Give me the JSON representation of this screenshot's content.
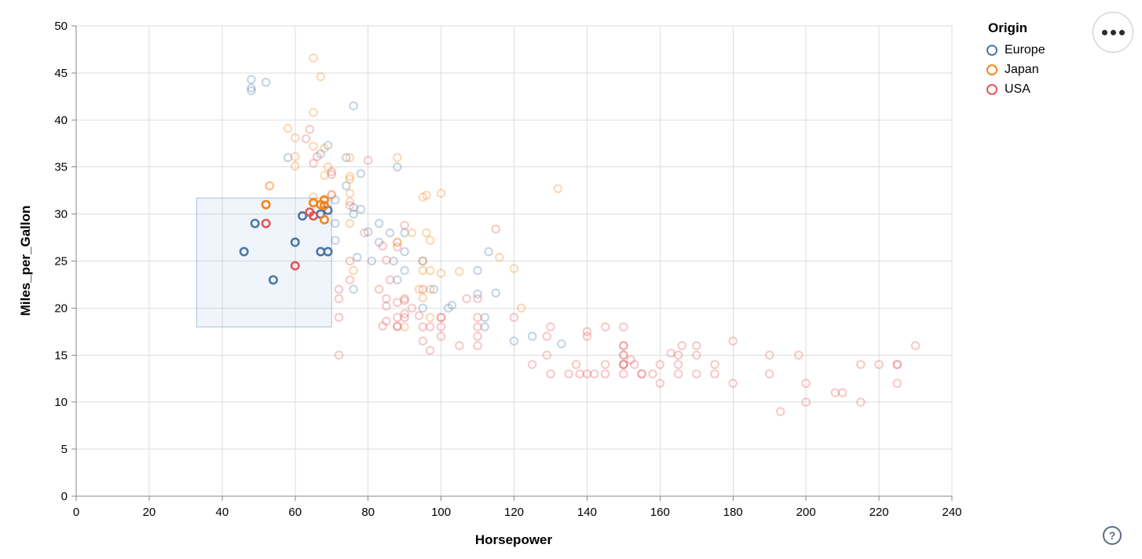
{
  "legend": {
    "title": "Origin",
    "items": [
      {
        "label": "Europe",
        "color": "#4c78a8"
      },
      {
        "label": "Japan",
        "color": "#f58518"
      },
      {
        "label": "USA",
        "color": "#e45756"
      }
    ]
  },
  "toolbar": {
    "more_options_icon": "more-options"
  },
  "help": {
    "label": "?"
  },
  "chart_data": {
    "type": "scatter",
    "title": "",
    "xlabel": "Horsepower",
    "ylabel": "Miles_per_Gallon",
    "xlim": [
      0,
      240
    ],
    "ylim": [
      0,
      50
    ],
    "xticks": [
      0,
      20,
      40,
      60,
      80,
      100,
      120,
      140,
      160,
      180,
      200,
      220,
      240
    ],
    "yticks": [
      0,
      5,
      10,
      15,
      20,
      25,
      30,
      35,
      40,
      45,
      50
    ],
    "grid": true,
    "legend_position": "top-right",
    "brush_selection": {
      "x": [
        33,
        70
      ],
      "y": [
        18,
        31.7
      ]
    },
    "unselected_opacity": 0.3,
    "point_shape": "open-circle",
    "series": [
      {
        "name": "Europe",
        "color": "#4c78a8",
        "points": [
          [
            46,
            26
          ],
          [
            49,
            29
          ],
          [
            54,
            23
          ],
          [
            60,
            27
          ],
          [
            62,
            29.8
          ],
          [
            67,
            26
          ],
          [
            69,
            26
          ],
          [
            69,
            30.4
          ],
          [
            67,
            30
          ],
          [
            87,
            25
          ],
          [
            90,
            24
          ],
          [
            95,
            25
          ],
          [
            113,
            26
          ],
          [
            48,
            43.1
          ],
          [
            48,
            44.3
          ],
          [
            48,
            43.4
          ],
          [
            52,
            44
          ],
          [
            67,
            36.4
          ],
          [
            76,
            41.5
          ],
          [
            83,
            29
          ],
          [
            76,
            30
          ],
          [
            76,
            22
          ],
          [
            90,
            26
          ],
          [
            90,
            28
          ],
          [
            81,
            25
          ],
          [
            83,
            27
          ],
          [
            71,
            29
          ],
          [
            71,
            31.5
          ],
          [
            74,
            33
          ],
          [
            74,
            36
          ],
          [
            76,
            30.7
          ],
          [
            78,
            34.3
          ],
          [
            78,
            30.5
          ],
          [
            80,
            28.1
          ],
          [
            88,
            35
          ],
          [
            58,
            36
          ],
          [
            69,
            37.3
          ],
          [
            77,
            25.4
          ],
          [
            71,
            27.2
          ],
          [
            112,
            19
          ],
          [
            112,
            18
          ],
          [
            98,
            22
          ],
          [
            102,
            20
          ],
          [
            125,
            17
          ],
          [
            133,
            16.2
          ],
          [
            120,
            16.5
          ],
          [
            110,
            21.5
          ],
          [
            115,
            21.6
          ],
          [
            110,
            24
          ],
          [
            103,
            20.3
          ],
          [
            95,
            20
          ],
          [
            88,
            23
          ],
          [
            86,
            28
          ]
        ]
      },
      {
        "name": "Japan",
        "color": "#f58518",
        "points": [
          [
            52,
            31
          ],
          [
            65,
            31.2
          ],
          [
            67,
            31
          ],
          [
            68,
            31.5
          ],
          [
            68,
            30.9
          ],
          [
            68,
            29.4
          ],
          [
            95,
            24
          ],
          [
            88,
            27
          ],
          [
            88,
            27
          ],
          [
            95,
            25
          ],
          [
            69,
            35
          ],
          [
            92,
            28
          ],
          [
            97,
            24
          ],
          [
            97,
            19
          ],
          [
            90,
            18
          ],
          [
            94,
            22
          ],
          [
            76,
            24
          ],
          [
            53,
            33
          ],
          [
            53,
            33
          ],
          [
            70,
            32
          ],
          [
            75,
            29
          ],
          [
            60,
            36.1
          ],
          [
            60,
            35.1
          ],
          [
            67,
            44.6
          ],
          [
            75,
            36
          ],
          [
            75,
            33.7
          ],
          [
            122,
            20
          ],
          [
            97,
            22
          ],
          [
            95,
            21.1
          ],
          [
            97,
            27.2
          ],
          [
            75,
            31.3
          ],
          [
            65,
            37.2
          ],
          [
            65,
            31.8
          ],
          [
            60,
            38.1
          ],
          [
            58,
            39.1
          ],
          [
            65,
            46.6
          ],
          [
            65,
            40.8
          ],
          [
            75,
            32.2
          ],
          [
            75,
            34
          ],
          [
            132,
            32.7
          ],
          [
            100,
            23.7
          ],
          [
            116,
            25.4
          ],
          [
            120,
            24.2
          ],
          [
            88,
            36
          ],
          [
            96,
            32
          ],
          [
            68,
            37
          ],
          [
            68,
            34.1
          ],
          [
            100,
            32.2
          ],
          [
            96,
            28
          ],
          [
            95,
            31.8
          ],
          [
            105,
            23.9
          ]
        ]
      },
      {
        "name": "USA",
        "color": "#e45756",
        "points": [
          [
            52,
            29
          ],
          [
            60,
            24.5
          ],
          [
            64,
            30.2
          ],
          [
            65,
            29.8
          ],
          [
            130,
            18
          ],
          [
            165,
            15
          ],
          [
            150,
            18
          ],
          [
            150,
            16
          ],
          [
            140,
            17
          ],
          [
            198,
            15
          ],
          [
            220,
            14
          ],
          [
            215,
            14
          ],
          [
            225,
            14
          ],
          [
            190,
            15
          ],
          [
            170,
            15
          ],
          [
            160,
            14
          ],
          [
            150,
            15
          ],
          [
            225,
            14
          ],
          [
            215,
            10
          ],
          [
            200,
            10
          ],
          [
            210,
            11
          ],
          [
            193,
            9
          ],
          [
            165,
            14
          ],
          [
            175,
            14
          ],
          [
            153,
            14
          ],
          [
            150,
            14
          ],
          [
            180,
            12
          ],
          [
            170,
            13
          ],
          [
            175,
            13
          ],
          [
            165,
            13
          ],
          [
            150,
            14
          ],
          [
            208,
            11
          ],
          [
            155,
            13
          ],
          [
            160,
            12
          ],
          [
            190,
            13
          ],
          [
            150,
            15
          ],
          [
            130,
            13
          ],
          [
            140,
            13
          ],
          [
            150,
            14
          ],
          [
            145,
            18
          ],
          [
            137,
            14
          ],
          [
            158,
            13
          ],
          [
            150,
            13
          ],
          [
            145,
            13
          ],
          [
            150,
            16
          ],
          [
            145,
            14
          ],
          [
            152,
            14.5
          ],
          [
            129,
            15
          ],
          [
            138,
            13
          ],
          [
            135,
            13
          ],
          [
            155,
            13
          ],
          [
            142,
            13
          ],
          [
            125,
            14
          ],
          [
            140,
            17.5
          ],
          [
            180,
            16.5
          ],
          [
            170,
            16
          ],
          [
            129,
            17
          ],
          [
            100,
            19
          ],
          [
            105,
            16
          ],
          [
            100,
            17
          ],
          [
            88,
            19
          ],
          [
            100,
            18
          ],
          [
            110,
            18
          ],
          [
            72,
            22
          ],
          [
            100,
            19
          ],
          [
            88,
            18
          ],
          [
            86,
            23
          ],
          [
            97,
            18
          ],
          [
            95,
            22
          ],
          [
            85,
            21
          ],
          [
            90,
            21
          ],
          [
            90,
            19
          ],
          [
            92,
            20
          ],
          [
            94,
            19.2
          ],
          [
            90,
            20.8
          ],
          [
            88,
            20.6
          ],
          [
            85,
            20.2
          ],
          [
            84,
            18.1
          ],
          [
            85,
            18.6
          ],
          [
            88,
            18.1
          ],
          [
            90,
            19.4
          ],
          [
            110,
            16
          ],
          [
            110,
            17
          ],
          [
            110,
            19
          ],
          [
            110,
            21
          ],
          [
            95,
            18
          ],
          [
            72,
            19
          ],
          [
            72,
            21
          ],
          [
            75,
            23
          ],
          [
            83,
            22
          ],
          [
            75,
            25
          ],
          [
            79,
            28
          ],
          [
            85,
            25.1
          ],
          [
            88,
            26.5
          ],
          [
            84,
            26.6
          ],
          [
            115,
            28.4
          ],
          [
            90,
            28.8
          ],
          [
            66,
            36.1
          ],
          [
            70,
            34.2
          ],
          [
            70,
            34.5
          ],
          [
            75,
            30.9
          ],
          [
            80,
            35.7
          ],
          [
            64,
            39
          ],
          [
            63,
            38
          ],
          [
            65,
            35.4
          ],
          [
            70,
            32.1
          ],
          [
            107,
            21
          ],
          [
            120,
            19
          ],
          [
            97,
            15.5
          ],
          [
            95,
            16.5
          ],
          [
            72,
            15
          ],
          [
            230,
            16
          ],
          [
            225,
            12
          ],
          [
            200,
            12
          ],
          [
            166,
            16
          ],
          [
            163,
            15.2
          ]
        ]
      }
    ]
  }
}
